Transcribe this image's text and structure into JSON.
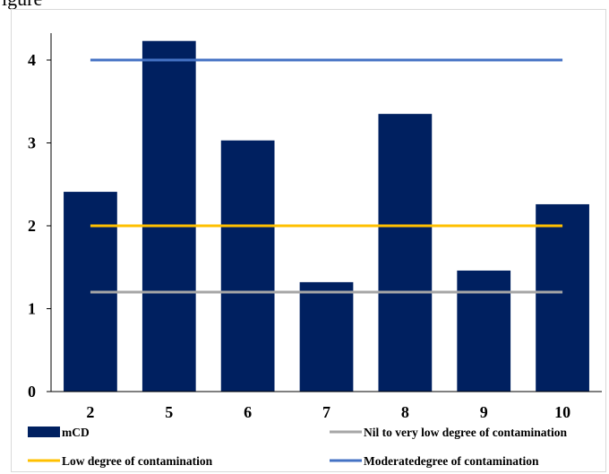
{
  "caption": "igure",
  "colors": {
    "bar": "#002060",
    "nil_low": "#A6A6A6",
    "low": "#FFC000",
    "moderate": "#4472C4",
    "border": "#D9D9D9",
    "axis": "#000000"
  },
  "chart_data": {
    "type": "bar",
    "categories": [
      "2",
      "5",
      "6",
      "7",
      "8",
      "9",
      "10"
    ],
    "series": [
      {
        "name": "mCD",
        "type": "bar",
        "color": "#002060",
        "values": [
          2.41,
          4.23,
          3.03,
          1.32,
          3.35,
          1.46,
          2.26
        ]
      }
    ],
    "reference_lines": [
      {
        "name": "Nil to very low degree of contamination",
        "value": 1.2,
        "color": "#A6A6A6"
      },
      {
        "name": "Low degree of contamination",
        "value": 2.0,
        "color": "#FFC000"
      },
      {
        "name": "Moderatedegree of contamination",
        "value": 4.0,
        "color": "#4472C4"
      }
    ],
    "ylim": [
      0,
      4.3
    ],
    "yticks": [
      "0",
      "1",
      "2",
      "3",
      "4"
    ],
    "grid": false,
    "legend_position": "bottom",
    "xlabel": "",
    "ylabel": "",
    "title": ""
  }
}
